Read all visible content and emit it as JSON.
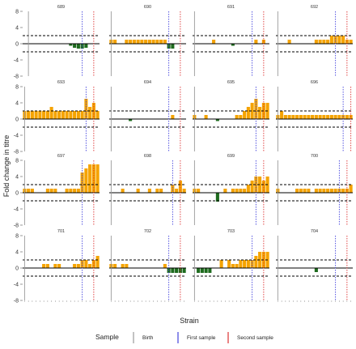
{
  "chart_data": {
    "type": "bar",
    "layout": "facet-grid 4x4",
    "ylabel": "Fold change in titre",
    "xlabel": "Strain",
    "ylim": [
      -8,
      8
    ],
    "yticks": [
      -8,
      -4,
      0,
      4,
      8
    ],
    "reference_lines": [
      2,
      -2
    ],
    "grid": false,
    "strain_count": 20,
    "colors": {
      "positive": "#F5A300",
      "negative": "#1E6B1E",
      "birth": "#999999",
      "first_sample": "#4444DD",
      "second_sample": "#DD3333"
    },
    "legend": {
      "title": "Sample",
      "placement": "bottom",
      "entries": [
        {
          "label": "Birth",
          "color": "#999999"
        },
        {
          "label": "First sample",
          "color": "#4444DD"
        },
        {
          "label": "Second sample",
          "color": "#DD3333"
        }
      ]
    },
    "panels": [
      {
        "id": "689",
        "markers": {
          "birth": 1,
          "first_sample": 15,
          "second_sample": 18
        },
        "values": [
          0,
          0,
          0,
          0,
          0,
          0,
          0,
          0,
          0,
          0,
          0,
          0,
          -0.5,
          -1,
          -1.2,
          -1.2,
          -1,
          0,
          0,
          0
        ]
      },
      {
        "id": "690",
        "markers": {
          "birth": 0,
          "first_sample": 15,
          "second_sample": 18
        },
        "values": [
          1,
          1,
          0,
          0,
          1,
          1,
          1,
          1,
          1,
          1,
          1,
          1,
          1,
          1,
          1,
          -1.2,
          -1.2,
          0,
          0,
          0
        ]
      },
      {
        "id": "691",
        "markers": {
          "birth": 0,
          "first_sample": 15,
          "second_sample": 18
        },
        "values": [
          0,
          0,
          0,
          0,
          0,
          1,
          0,
          0,
          0,
          0,
          -0.5,
          0,
          0,
          0,
          0,
          0,
          1,
          0,
          1,
          0
        ]
      },
      {
        "id": "692",
        "markers": {
          "birth": 0,
          "first_sample": 15,
          "second_sample": 18
        },
        "values": [
          0,
          0,
          0,
          1,
          0,
          0,
          0,
          0,
          0,
          0,
          1,
          1,
          1,
          1,
          2,
          2,
          2,
          2,
          1,
          1
        ]
      },
      {
        "id": "693",
        "markers": {
          "birth": 0,
          "first_sample": 16,
          "second_sample": 18
        },
        "values": [
          2,
          2,
          2,
          2,
          2,
          2,
          2,
          3,
          2,
          2,
          2,
          2,
          2,
          2,
          2,
          2,
          5,
          3,
          4,
          2
        ]
      },
      {
        "id": "694",
        "markers": {
          "birth": 0,
          "first_sample": 15,
          "second_sample": 18
        },
        "values": [
          0,
          0,
          0,
          0,
          0,
          -0.5,
          0,
          0,
          0,
          0,
          0,
          0,
          0,
          0,
          0,
          0,
          1,
          0,
          0,
          0
        ]
      },
      {
        "id": "695",
        "markers": {
          "birth": 0,
          "first_sample": 16,
          "second_sample": 18
        },
        "values": [
          1,
          0,
          0,
          1,
          0,
          0,
          -0.5,
          0,
          0,
          0,
          0,
          1,
          1,
          2,
          3,
          4,
          5,
          3,
          4,
          4
        ]
      },
      {
        "id": "696",
        "markers": {
          "birth": 0,
          "first_sample": 17,
          "second_sample": 19
        },
        "values": [
          1,
          2,
          1,
          1,
          1,
          1,
          1,
          1,
          1,
          1,
          1,
          1,
          1,
          1,
          1,
          1,
          1,
          1,
          1,
          1
        ]
      },
      {
        "id": "697",
        "markers": {
          "birth": 0,
          "first_sample": 15,
          "second_sample": 18
        },
        "values": [
          1,
          1,
          1,
          0,
          0,
          0,
          1,
          1,
          1,
          0,
          0,
          1,
          1,
          1,
          1,
          5,
          6,
          7,
          7,
          7
        ]
      },
      {
        "id": "698",
        "markers": {
          "birth": 0,
          "first_sample": 16,
          "second_sample": 18
        },
        "values": [
          0,
          0,
          0,
          1,
          0,
          0,
          0,
          1,
          0,
          0,
          1,
          0,
          1,
          1,
          0,
          0,
          2,
          1,
          3,
          1
        ]
      },
      {
        "id": "699",
        "markers": {
          "birth": 0,
          "first_sample": 16,
          "second_sample": 18
        },
        "values": [
          1,
          1,
          0,
          0,
          0,
          0,
          -2.2,
          0,
          1,
          0,
          1,
          1,
          1,
          1,
          2,
          3,
          4,
          4,
          3,
          4
        ]
      },
      {
        "id": "700",
        "markers": {
          "birth": 0,
          "first_sample": 16,
          "second_sample": 18
        },
        "values": [
          1,
          0,
          0,
          0,
          0,
          1,
          1,
          1,
          1,
          0,
          1,
          1,
          1,
          1,
          1,
          1,
          1,
          1,
          1,
          2
        ]
      },
      {
        "id": "701",
        "markers": {
          "birth": 0,
          "first_sample": 15,
          "second_sample": 18
        },
        "values": [
          0,
          0,
          0,
          0,
          0,
          1,
          1,
          0,
          1,
          1,
          0,
          0,
          0,
          1,
          1,
          2,
          2,
          1,
          2,
          3
        ]
      },
      {
        "id": "702",
        "markers": {
          "birth": 0,
          "first_sample": 15,
          "second_sample": 18
        },
        "values": [
          1,
          1,
          0,
          1,
          1,
          0,
          0,
          0,
          0,
          0,
          0,
          0,
          0,
          0,
          1,
          -1.2,
          -1.2,
          -1.2,
          -1.2,
          -1.2
        ]
      },
      {
        "id": "703",
        "markers": {
          "birth": 0,
          "first_sample": 15,
          "second_sample": 18
        },
        "values": [
          0,
          -1.2,
          -1.2,
          -1.2,
          -1.2,
          0,
          0,
          2,
          0,
          2,
          1,
          1,
          2,
          2,
          2,
          2,
          3,
          4,
          4,
          4
        ]
      },
      {
        "id": "704",
        "markers": {
          "birth": 0,
          "first_sample": 15,
          "second_sample": 18
        },
        "values": [
          0,
          0,
          0,
          0,
          0,
          0,
          0,
          0,
          0,
          0,
          -1,
          0,
          0,
          0,
          0,
          0,
          0,
          0,
          0,
          0
        ]
      }
    ]
  }
}
